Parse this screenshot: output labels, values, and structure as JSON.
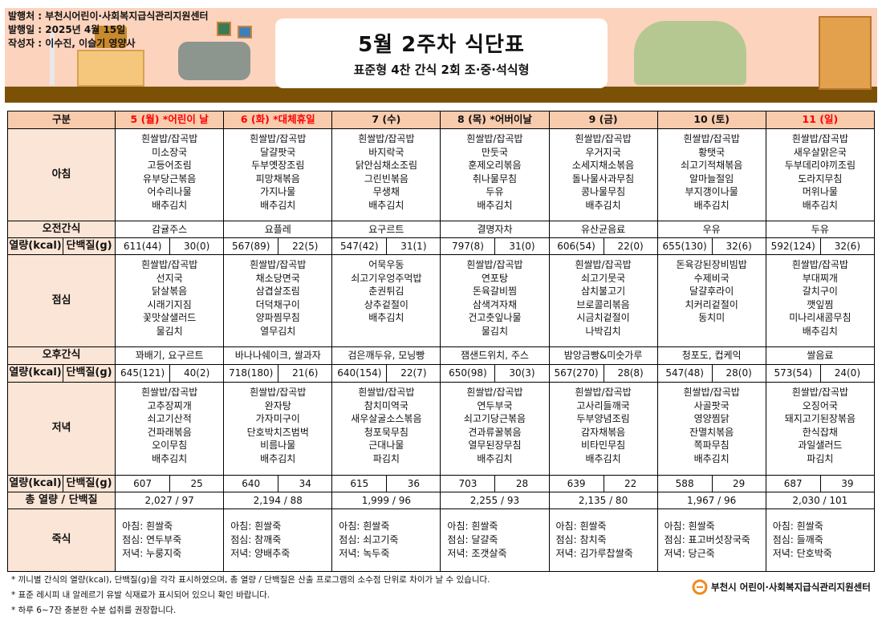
{
  "header": {
    "publisher": "발행처 : 부천시어린이·사회복지급식관리지원센터",
    "date": "발행일 : 2025년 4월 15일",
    "author": "작성자 : 이수진, 이슬기 영양사",
    "title": "5월  2주차  식단표",
    "subtitle": "표준형 4찬 간식 2회 조·중·석식형"
  },
  "colors": {
    "header_bg": "#f8cbad",
    "label_bg": "#fbe5d6",
    "holiday": "#ff0000",
    "banner": "#fcd3bd",
    "floor": "#7b5106"
  },
  "labels": {
    "category": "구분",
    "breakfast": "아침",
    "am_snack": "오전간식",
    "kcal": "열량(kcal)",
    "protein": "단백질(g)",
    "lunch": "점심",
    "pm_snack": "오후간식",
    "dinner": "저녁",
    "total": "총 열량 / 단백질",
    "porridge": "죽식"
  },
  "days": [
    {
      "label": "5 (월) *어린이 날",
      "holiday": true
    },
    {
      "label": "6 (화) *대체휴일",
      "holiday": true
    },
    {
      "label": "7 (수)",
      "holiday": false
    },
    {
      "label": "8 (목) *어버이날",
      "holiday": false
    },
    {
      "label": "9 (금)",
      "holiday": false
    },
    {
      "label": "10 (토)",
      "holiday": false
    },
    {
      "label": "11 (일)",
      "holiday": true
    }
  ],
  "breakfast": [
    [
      "흰쌀밥/잡곡밥",
      "미소장국",
      "고등어조림",
      "유부당근볶음",
      "어수리나물",
      "배추김치"
    ],
    [
      "흰쌀밥/잡곡밥",
      "달걀팟국",
      "두부옛장조림",
      "피망채볶음",
      "가지나물",
      "배추김치"
    ],
    [
      "흰쌀밥/잡곡밥",
      "바지락국",
      "닭안심채소조림",
      "그린빈볶음",
      "무생채",
      "배추김치"
    ],
    [
      "흰쌀밥/잡곡밥",
      "만둣국",
      "훈제오리볶음",
      "취나물무침",
      "두유",
      "배추김치"
    ],
    [
      "흰쌀밥/잡곡밥",
      "우거지국",
      "소세지채소볶음",
      "돌나물사과무침",
      "콩나물무침",
      "배추김치"
    ],
    [
      "흰쌀밥/잡곡밥",
      "황탯국",
      "쇠고기적채볶음",
      "알마늘절임",
      "부지갱이나물",
      "배추김치"
    ],
    [
      "흰쌀밥/잡곡밥",
      "새우살맑은국",
      "두부데리야끼조림",
      "도라지무침",
      "머위나물",
      "배추김치"
    ]
  ],
  "am_snack": [
    "감귤주스",
    "요플레",
    "요구르트",
    "결명자차",
    "유산균음료",
    "우유",
    "두유"
  ],
  "am_nutrition": [
    [
      "611(44)",
      "30(0)"
    ],
    [
      "567(89)",
      "22(5)"
    ],
    [
      "547(42)",
      "31(1)"
    ],
    [
      "797(8)",
      "31(0)"
    ],
    [
      "606(54)",
      "22(0)"
    ],
    [
      "655(130)",
      "32(6)"
    ],
    [
      "592(124)",
      "32(6)"
    ]
  ],
  "lunch": [
    [
      "흰쌀밥/잡곡밥",
      "선지국",
      "닭살볶음",
      "시래기지짐",
      "꽃맛살샐러드",
      "물김치"
    ],
    [
      "흰쌀밥/잡곡밥",
      "채소당면국",
      "삼겹살조림",
      "더덕채구이",
      "양파찜무침",
      "열무김치"
    ],
    [
      "어묵우동",
      "쇠고기우엉주먹밥",
      "춘권튀김",
      "상추겉절이",
      "배추김치"
    ],
    [
      "흰쌀밥/잡곡밥",
      "연포탕",
      "돈육갈비찜",
      "삼색겨자채",
      "건고춧잎나물",
      "물김치"
    ],
    [
      "흰쌀밥/잡곡밥",
      "쇠고기뭇국",
      "삼치불고기",
      "브로콜리볶음",
      "시금치겉절이",
      "나박김치"
    ],
    [
      "돈육강된장비빔밥",
      "수제비국",
      "달걀후라이",
      "치커리겉절이",
      "동치미"
    ],
    [
      "흰쌀밥/잡곡밥",
      "부대찌개",
      "갈치구이",
      "깻잎찜",
      "미나리새콤무침",
      "배추김치"
    ]
  ],
  "pm_snack": [
    "꽈배기, 요구르트",
    "바나나쉐이크, 쌀과자",
    "검은깨두유, 모닝빵",
    "잼샌드위치, 주스",
    "밤앙금빵&미숫가루",
    "청포도, 컵케익",
    "쌀음료"
  ],
  "pm_nutrition": [
    [
      "645(121)",
      "40(2)"
    ],
    [
      "718(180)",
      "21(6)"
    ],
    [
      "640(154)",
      "22(7)"
    ],
    [
      "650(98)",
      "30(3)"
    ],
    [
      "567(270)",
      "28(8)"
    ],
    [
      "547(48)",
      "28(0)"
    ],
    [
      "573(54)",
      "24(0)"
    ]
  ],
  "dinner": [
    [
      "흰쌀밥/잡곡밥",
      "고추장찌개",
      "쇠고기산적",
      "건파래볶음",
      "오이무침",
      "배추김치"
    ],
    [
      "흰쌀밥/잡곡밥",
      "완자탕",
      "가자미구이",
      "단호박치즈범벅",
      "비름나물",
      "배추김치"
    ],
    [
      "흰쌀밥/잡곡밥",
      "참치미역국",
      "새우살굴소스볶음",
      "청포묵무침",
      "근대나물",
      "파김치"
    ],
    [
      "흰쌀밥/잡곡밥",
      "연두부국",
      "쇠고기당근볶음",
      "견과류꿀볶음",
      "열무된장무침",
      "배추김치"
    ],
    [
      "흰쌀밥/잡곡밥",
      "고사리들깨국",
      "두부양념조림",
      "감자채볶음",
      "비타민무침",
      "배추김치"
    ],
    [
      "흰쌀밥/잡곡밥",
      "사골팟국",
      "영양찜닭",
      "잔멸치볶음",
      "쪽파무침",
      "배추김치"
    ],
    [
      "흰쌀밥/잡곡밥",
      "오징어국",
      "돼지고기된장볶음",
      "한식잡채",
      "과일샐러드",
      "파김치"
    ]
  ],
  "dinner_nutrition": [
    [
      "607",
      "25"
    ],
    [
      "640",
      "34"
    ],
    [
      "615",
      "36"
    ],
    [
      "703",
      "28"
    ],
    [
      "639",
      "22"
    ],
    [
      "588",
      "29"
    ],
    [
      "687",
      "39"
    ]
  ],
  "totals": [
    "2,027  /  97",
    "2,194  /  88",
    "1,999  /  96",
    "2,255  /  93",
    "2,135  /  80",
    "1,967  /  96",
    "2,030  /  101"
  ],
  "porridge": [
    [
      "아침: 흰쌀죽",
      "점심: 연두부죽",
      "저녁: 누룽지죽"
    ],
    [
      "아침: 흰쌀죽",
      "점심: 참깨죽",
      "저녁: 양배추죽"
    ],
    [
      "아침: 흰쌀죽",
      "점심: 쇠고기죽",
      "저녁: 녹두죽"
    ],
    [
      "아침: 흰쌀죽",
      "점심: 달걀죽",
      "저녁: 조갯살죽"
    ],
    [
      "아침: 흰쌀죽",
      "점심: 참치죽",
      "저녁: 김가루찹쌀죽"
    ],
    [
      "아침: 흰쌀죽",
      "점심: 표고버섯장국죽",
      "저녁: 당근죽"
    ],
    [
      "아침: 흰쌀죽",
      "점심: 들깨죽",
      "저녁: 단호박죽"
    ]
  ],
  "notes": [
    "* 끼니별 간식의 열량(kcal), 단백질(g)을 각각 표시하였으며, 총 열량 / 단백질은 산출 프로그램의 소수점 단위로 차이가 날 수 있습니다.",
    "* 표준 레시피 내 알레르기 유발 식재료가 표시되어 있으니 확인 바랍니다.",
    "* 하루 6~7잔 충분한 수분 섭취를 권장합니다."
  ],
  "footer_logo": "부천시 어린이·사회복지급식관리지원센터"
}
